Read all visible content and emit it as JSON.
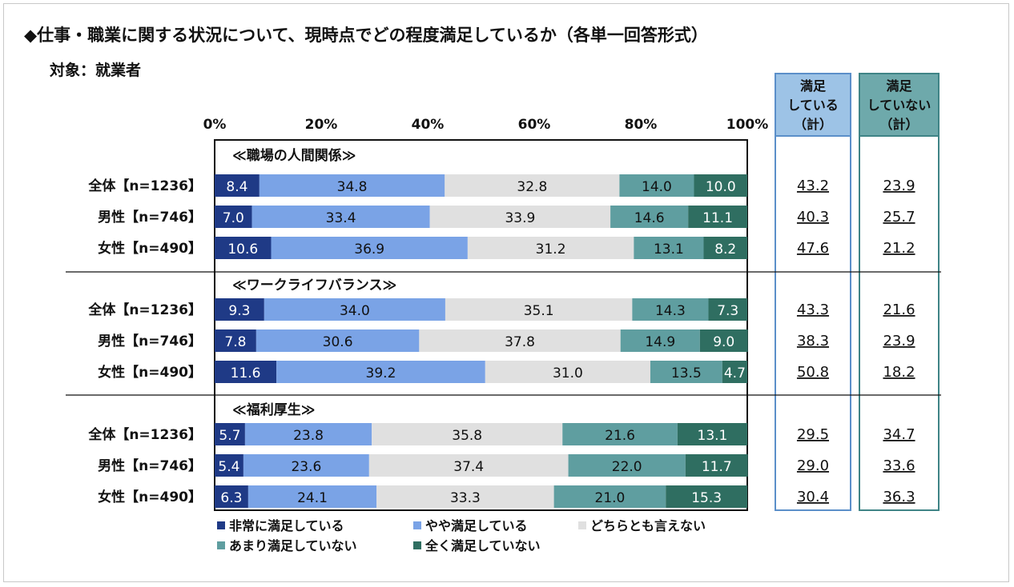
{
  "title": "◆仕事・職業に関する状況について、現時点でどの程度満足しているか（各単一回答形式）",
  "subtitle": "対象：就業者",
  "colors": {
    "very_satisfied": "#1f3a86",
    "somewhat_satisfied": "#7aa3e6",
    "neutral": "#e0e0e0",
    "somewhat_dissatisfied": "#5f9ea0",
    "very_dissatisfied": "#2f6e61",
    "sum_satisfied_fill": "#9dc3e6",
    "sum_satisfied_border": "#5b8fc9",
    "sum_dissatisfied_fill": "#6ea9ab",
    "sum_dissatisfied_border": "#3f8486"
  },
  "summary_headers": {
    "satisfied": [
      "満足",
      "している",
      "（計）"
    ],
    "dissatisfied": [
      "満足",
      "していない",
      "（計）"
    ]
  },
  "chart_data": {
    "type": "bar",
    "orientation": "horizontal",
    "stacked": true,
    "percent_scale": true,
    "x_ticks": [
      "0%",
      "20%",
      "40%",
      "60%",
      "80%",
      "100%"
    ],
    "xlim": [
      0,
      100
    ],
    "legend": {
      "placement": "bottom",
      "items": [
        "非常に満足している",
        "やや満足している",
        "どちらとも言えない",
        "あまり満足していない",
        "全く満足していない"
      ]
    },
    "series_names": [
      "非常に満足している",
      "やや満足している",
      "どちらとも言えない",
      "あまり満足していない",
      "全く満足していない"
    ],
    "groups": [
      {
        "name": "≪職場の人間関係≫",
        "rows": [
          {
            "label": "全体【n=1236】",
            "values": [
              8.4,
              34.8,
              32.8,
              14.0,
              10.0
            ],
            "labels": [
              "8.4",
              "34.8",
              "32.8",
              "14.0",
              "10.0"
            ],
            "satisfied_total": "43.2",
            "dissatisfied_total": "23.9"
          },
          {
            "label": "男性【n=746】",
            "values": [
              7.0,
              33.4,
              33.9,
              14.6,
              11.1
            ],
            "labels": [
              "7.0",
              "33.4",
              "33.9",
              "14.6",
              "11.1"
            ],
            "satisfied_total": "40.3",
            "dissatisfied_total": "25.7"
          },
          {
            "label": "女性【n=490】",
            "values": [
              10.6,
              36.9,
              31.2,
              13.1,
              8.2
            ],
            "labels": [
              "10.6",
              "36.9",
              "31.2",
              "13.1",
              "8.2"
            ],
            "satisfied_total": "47.6",
            "dissatisfied_total": "21.2"
          }
        ]
      },
      {
        "name": "≪ワークライフバランス≫",
        "rows": [
          {
            "label": "全体【n=1236】",
            "values": [
              9.3,
              34.0,
              35.1,
              14.3,
              7.3
            ],
            "labels": [
              "9.3",
              "34.0",
              "35.1",
              "14.3",
              "7.3"
            ],
            "satisfied_total": "43.3",
            "dissatisfied_total": "21.6"
          },
          {
            "label": "男性【n=746】",
            "values": [
              7.8,
              30.6,
              37.8,
              14.9,
              9.0
            ],
            "labels": [
              "7.8",
              "30.6",
              "37.8",
              "14.9",
              "9.0"
            ],
            "satisfied_total": "38.3",
            "dissatisfied_total": "23.9"
          },
          {
            "label": "女性【n=490】",
            "values": [
              11.6,
              39.2,
              31.0,
              13.5,
              4.7
            ],
            "labels": [
              "11.6",
              "39.2",
              "31.0",
              "13.5",
              "4.7"
            ],
            "satisfied_total": "50.8",
            "dissatisfied_total": "18.2"
          }
        ]
      },
      {
        "name": "≪福利厚生≫",
        "rows": [
          {
            "label": "全体【n=1236】",
            "values": [
              5.7,
              23.8,
              35.8,
              21.6,
              13.1
            ],
            "labels": [
              "5.7",
              "23.8",
              "35.8",
              "21.6",
              "13.1"
            ],
            "satisfied_total": "29.5",
            "dissatisfied_total": "34.7"
          },
          {
            "label": "男性【n=746】",
            "values": [
              5.4,
              23.6,
              37.4,
              22.0,
              11.7
            ],
            "labels": [
              "5.4",
              "23.6",
              "37.4",
              "22.0",
              "11.7"
            ],
            "satisfied_total": "29.0",
            "dissatisfied_total": "33.6"
          },
          {
            "label": "女性【n=490】",
            "values": [
              6.3,
              24.1,
              33.3,
              21.0,
              15.3
            ],
            "labels": [
              "6.3",
              "24.1",
              "33.3",
              "21.0",
              "15.3"
            ],
            "satisfied_total": "30.4",
            "dissatisfied_total": "36.3"
          }
        ]
      }
    ]
  }
}
